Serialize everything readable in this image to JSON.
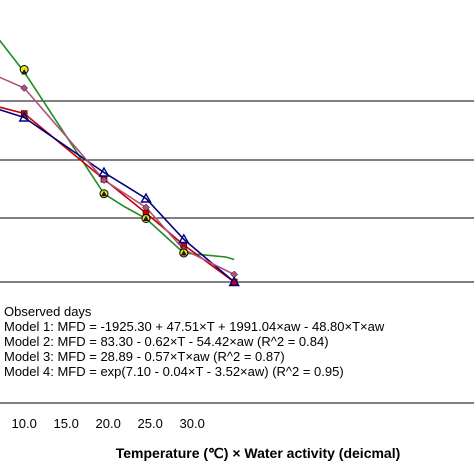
{
  "chart_data": {
    "type": "line",
    "xlabel": "Temperature (℃) × Water activity (deicmal)",
    "ylabel": "",
    "xlim": [
      7.0,
      35.0
    ],
    "ylim": [
      0.0,
      1.0
    ],
    "xticks": [
      "10.0",
      "15.0",
      "20.0",
      "25.0",
      "30.0"
    ],
    "xtick_values": [
      10,
      15,
      20,
      25,
      30
    ],
    "grid": "horizontal",
    "grid_y": [
      0.0,
      0.256,
      0.488,
      0.724
    ],
    "legend": [
      "Observed days",
      "Model 1: MFD = -1925.30 + 47.51×T + 1991.04×aw - 48.80×T×aw",
      "Model 2: MFD = 83.30 - 0.62×T - 54.42×aw    (R^2 = 0.84)",
      "Model 3: MFD = 28.89 - 0.57×T×aw    (R^2 = 0.87)",
      "Model 4: MFD = exp(7.10 - 0.04×T - 3.52×aw)    (R^2 = 0.95)"
    ],
    "legend_position": "bottom-left",
    "series": [
      {
        "name": "Observed days",
        "color": "#228B22",
        "marker": "none",
        "points": [
          [
            7.0,
            0.97
          ],
          [
            10.0,
            0.84
          ],
          [
            19.5,
            0.353
          ],
          [
            22.0,
            0.3
          ],
          [
            24.5,
            0.254
          ],
          [
            29.0,
            0.116
          ],
          [
            34.0,
            0.1
          ],
          [
            35.0,
            0.09
          ]
        ]
      },
      {
        "name": "Model 1",
        "color": "#cc0000",
        "marker": "square",
        "points": [
          [
            7.0,
            0.7
          ],
          [
            10.0,
            0.674
          ],
          [
            19.5,
            0.411
          ],
          [
            24.5,
            0.276
          ],
          [
            29.0,
            0.148
          ],
          [
            35.0,
            0.0
          ]
        ]
      },
      {
        "name": "Model 2",
        "color": "#000080",
        "marker": "triangle-open",
        "points": [
          [
            7.0,
            0.69
          ],
          [
            10.0,
            0.658
          ],
          [
            19.5,
            0.438
          ],
          [
            24.5,
            0.334
          ],
          [
            29.0,
            0.171
          ],
          [
            35.0,
            0.0
          ]
        ]
      },
      {
        "name": "Model 3",
        "color": "#b05080",
        "marker": "diamond",
        "points": [
          [
            7.0,
            0.82
          ],
          [
            10.0,
            0.776
          ],
          [
            19.5,
            0.408
          ],
          [
            24.5,
            0.298
          ],
          [
            29.0,
            0.13
          ],
          [
            35.0,
            0.03
          ]
        ]
      },
      {
        "name": "Model 4",
        "color": "#e8e820",
        "marker": "circle",
        "points": [
          [
            10.0,
            0.85
          ],
          [
            19.5,
            0.353
          ],
          [
            24.5,
            0.254
          ],
          [
            29.0,
            0.116
          ]
        ],
        "line": false
      }
    ]
  }
}
